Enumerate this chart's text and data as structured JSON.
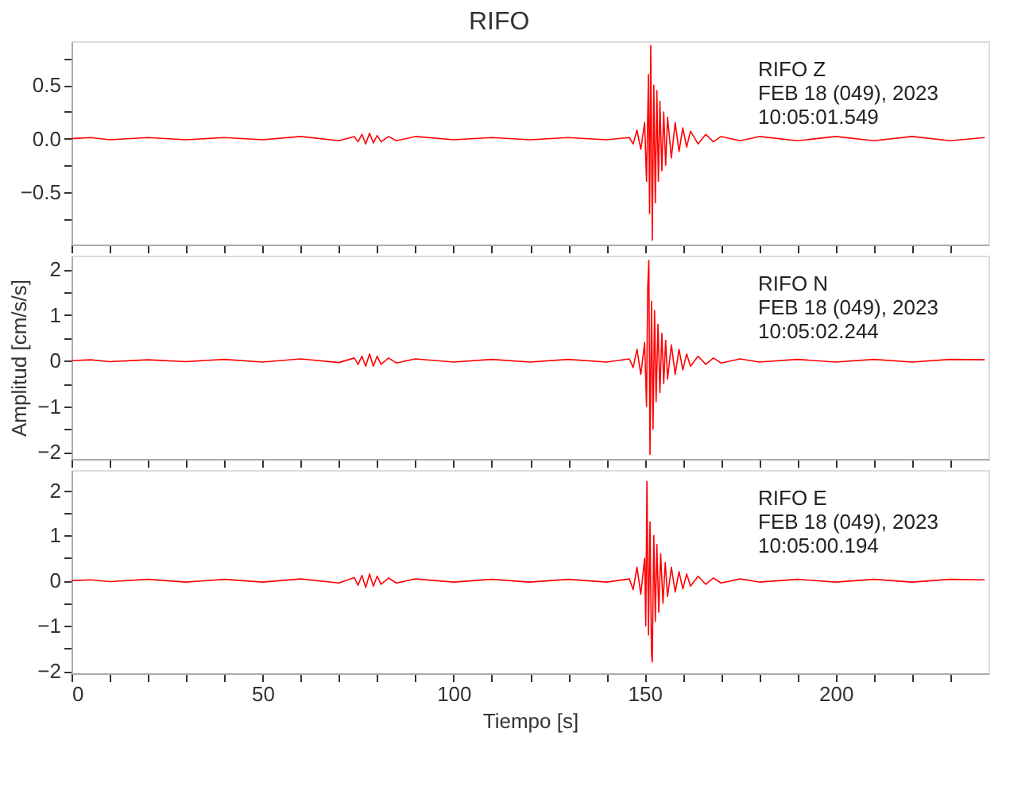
{
  "chart_data": [
    {
      "type": "line",
      "title": "RIFO",
      "annotations": [
        "RIFO   Z",
        "FEB 18 (049), 2023",
        "10:05:01.549"
      ],
      "tick_labels": "y",
      "grid": false,
      "line_style": "solid",
      "xlim": [
        0,
        240
      ],
      "xticks": [
        0,
        {
          "value": 10,
          "label": null
        },
        {
          "value": 20,
          "label": null
        },
        {
          "value": 30,
          "label": null
        },
        {
          "value": 40,
          "label": null
        },
        50,
        {
          "value": 60,
          "label": null
        },
        {
          "value": 70,
          "label": null
        },
        {
          "value": 80,
          "label": null
        },
        {
          "value": 90,
          "label": null
        },
        100,
        {
          "value": 110,
          "label": null
        },
        {
          "value": 120,
          "label": null
        },
        {
          "value": 130,
          "label": null
        },
        {
          "value": 140,
          "label": null
        },
        150,
        {
          "value": 160,
          "label": null
        },
        {
          "value": 170,
          "label": null
        },
        {
          "value": 180,
          "label": null
        },
        {
          "value": 190,
          "label": null
        },
        200,
        {
          "value": 210,
          "label": null
        },
        {
          "value": 220,
          "label": null
        },
        {
          "value": 230,
          "label": null
        }
      ],
      "ylim": [
        -0.99,
        0.91
      ],
      "yticks": [
        {
          "value": -0.75,
          "label": null
        },
        -0.5,
        {
          "value": -0.25,
          "label": null
        },
        {
          "value": 0,
          "label": "0.0"
        },
        {
          "value": 0.25,
          "label": null
        },
        0.5,
        {
          "value": 0.75,
          "label": null
        }
      ],
      "series": [
        {
          "color": "#ff0000",
          "x": [
            0,
            5,
            10,
            20,
            30,
            40,
            50,
            60,
            70,
            74,
            75,
            76,
            77,
            78,
            79,
            80,
            81,
            83,
            85,
            90,
            100,
            110,
            120,
            130,
            140,
            146,
            147,
            148,
            149,
            150,
            150.5,
            151,
            151.3,
            151.6,
            152,
            152.4,
            152.8,
            153.2,
            153.6,
            154,
            154.5,
            155,
            155.5,
            156,
            157,
            158,
            159,
            160,
            161,
            162,
            164,
            166,
            168,
            170,
            175,
            180,
            190,
            200,
            210,
            220,
            230,
            239
          ],
          "values": [
            0,
            0.01,
            -0.01,
            0.01,
            -0.01,
            0.01,
            -0.01,
            0.02,
            -0.02,
            0.02,
            -0.03,
            0.04,
            -0.05,
            0.05,
            -0.04,
            0.03,
            -0.03,
            0.02,
            -0.02,
            0.02,
            -0.01,
            0.01,
            -0.01,
            0.01,
            -0.01,
            0.01,
            -0.05,
            0.08,
            -0.1,
            0.15,
            -0.4,
            0.6,
            -0.7,
            0.87,
            -0.95,
            0.5,
            -0.6,
            0.45,
            -0.4,
            0.35,
            -0.3,
            0.25,
            -0.25,
            0.2,
            -0.18,
            0.15,
            -0.12,
            0.1,
            -0.08,
            0.07,
            -0.05,
            0.04,
            -0.03,
            0.02,
            -0.02,
            0.02,
            -0.02,
            0.02,
            -0.02,
            0.02,
            -0.02,
            0.01
          ]
        }
      ]
    },
    {
      "type": "line",
      "ylabel": "Amplitud [cm/s/s]",
      "annotations": [
        "RIFO   N",
        "FEB 18 (049), 2023",
        "10:05:02.244"
      ],
      "tick_labels": "y",
      "grid": false,
      "line_style": "solid",
      "xlim": [
        0,
        240
      ],
      "xticks": [
        0,
        {
          "value": 10,
          "label": null
        },
        {
          "value": 20,
          "label": null
        },
        {
          "value": 30,
          "label": null
        },
        {
          "value": 40,
          "label": null
        },
        50,
        {
          "value": 60,
          "label": null
        },
        {
          "value": 70,
          "label": null
        },
        {
          "value": 80,
          "label": null
        },
        {
          "value": 90,
          "label": null
        },
        100,
        {
          "value": 110,
          "label": null
        },
        {
          "value": 120,
          "label": null
        },
        {
          "value": 130,
          "label": null
        },
        {
          "value": 140,
          "label": null
        },
        150,
        {
          "value": 160,
          "label": null
        },
        {
          "value": 170,
          "label": null
        },
        {
          "value": 180,
          "label": null
        },
        {
          "value": 190,
          "label": null
        },
        200,
        {
          "value": 210,
          "label": null
        },
        {
          "value": 220,
          "label": null
        },
        {
          "value": 230,
          "label": null
        }
      ],
      "ylim": [
        -2.15,
        2.3
      ],
      "yticks": [
        -2,
        {
          "value": -1.5,
          "label": null
        },
        -1,
        {
          "value": -0.5,
          "label": null
        },
        0,
        {
          "value": 0.5,
          "label": null
        },
        1,
        {
          "value": 1.5,
          "label": null
        },
        2
      ],
      "series": [
        {
          "color": "#ff0000",
          "x": [
            0,
            5,
            10,
            20,
            30,
            40,
            50,
            60,
            70,
            74,
            75,
            76,
            77,
            78,
            79,
            80,
            81,
            83,
            85,
            90,
            100,
            110,
            120,
            130,
            140,
            146,
            147,
            148,
            149,
            150,
            150.5,
            150.8,
            151.1,
            151.4,
            151.8,
            152.2,
            152.6,
            153,
            153.5,
            154,
            154.5,
            155,
            155.5,
            156,
            157,
            158,
            159,
            160,
            161,
            162,
            164,
            166,
            168,
            170,
            175,
            180,
            190,
            200,
            210,
            220,
            230,
            239
          ],
          "values": [
            0,
            0.02,
            -0.02,
            0.02,
            -0.02,
            0.03,
            -0.03,
            0.04,
            -0.04,
            0.06,
            -0.08,
            0.1,
            -0.12,
            0.15,
            -0.12,
            0.1,
            -0.08,
            0.06,
            -0.05,
            0.04,
            -0.03,
            0.03,
            -0.03,
            0.03,
            -0.03,
            0.04,
            -0.15,
            0.25,
            -0.3,
            0.4,
            -1.0,
            1.6,
            2.2,
            -2.05,
            1.3,
            -1.5,
            1.1,
            -0.9,
            0.8,
            -0.7,
            0.6,
            -0.5,
            0.45,
            -0.4,
            0.35,
            -0.3,
            0.25,
            -0.2,
            0.15,
            -0.12,
            0.1,
            -0.08,
            0.06,
            -0.05,
            0.04,
            -0.03,
            0.03,
            -0.03,
            0.03,
            -0.03,
            0.03,
            0.02
          ]
        }
      ]
    },
    {
      "type": "line",
      "xlabel": "Tiempo [s]",
      "annotations": [
        "RIFO   E",
        "FEB 18 (049), 2023",
        "10:05:00.194"
      ],
      "grid": false,
      "line_style": "solid",
      "xlim": [
        0,
        240
      ],
      "xticks": [
        0,
        {
          "value": 10,
          "label": null
        },
        {
          "value": 20,
          "label": null
        },
        {
          "value": 30,
          "label": null
        },
        {
          "value": 40,
          "label": null
        },
        50,
        {
          "value": 60,
          "label": null
        },
        {
          "value": 70,
          "label": null
        },
        {
          "value": 80,
          "label": null
        },
        {
          "value": 90,
          "label": null
        },
        100,
        {
          "value": 110,
          "label": null
        },
        {
          "value": 120,
          "label": null
        },
        {
          "value": 130,
          "label": null
        },
        {
          "value": 140,
          "label": null
        },
        150,
        {
          "value": 160,
          "label": null
        },
        {
          "value": 170,
          "label": null
        },
        {
          "value": 180,
          "label": null
        },
        {
          "value": 190,
          "label": null
        },
        200,
        {
          "value": 210,
          "label": null
        },
        {
          "value": 220,
          "label": null
        },
        {
          "value": 230,
          "label": null
        }
      ],
      "ylim": [
        -2.05,
        2.45
      ],
      "yticks": [
        -2,
        {
          "value": -1.5,
          "label": null
        },
        -1,
        {
          "value": -0.5,
          "label": null
        },
        0,
        {
          "value": 0.5,
          "label": null
        },
        1,
        {
          "value": 1.5,
          "label": null
        },
        2
      ],
      "series": [
        {
          "color": "#ff0000",
          "x": [
            0,
            5,
            10,
            20,
            30,
            40,
            50,
            60,
            70,
            74,
            75,
            76,
            77,
            78,
            79,
            80,
            81,
            83,
            85,
            90,
            100,
            110,
            120,
            130,
            140,
            146,
            147,
            148,
            149,
            150,
            150.3,
            150.6,
            151,
            151.4,
            151.8,
            152,
            152.4,
            152.8,
            153.2,
            153.7,
            154.2,
            154.8,
            155.4,
            156,
            157,
            158,
            159,
            160,
            161,
            162,
            164,
            166,
            168,
            170,
            175,
            180,
            190,
            200,
            210,
            220,
            230,
            239
          ],
          "values": [
            0,
            0.02,
            -0.02,
            0.03,
            -0.03,
            0.03,
            -0.03,
            0.04,
            -0.05,
            0.07,
            -0.1,
            0.12,
            -0.15,
            0.15,
            -0.12,
            0.1,
            -0.08,
            0.06,
            -0.05,
            0.04,
            -0.03,
            0.03,
            -0.03,
            0.03,
            -0.03,
            0.04,
            -0.2,
            0.3,
            -0.3,
            0.5,
            -1.0,
            2.2,
            -1.2,
            1.3,
            -1.6,
            -1.8,
            1.0,
            -0.9,
            0.8,
            -0.7,
            0.6,
            -0.5,
            0.4,
            -0.35,
            0.3,
            -0.25,
            0.2,
            -0.18,
            0.15,
            -0.12,
            0.1,
            -0.08,
            0.06,
            -0.05,
            0.04,
            -0.03,
            0.03,
            -0.03,
            0.03,
            -0.03,
            0.03,
            0.02
          ]
        }
      ]
    }
  ]
}
